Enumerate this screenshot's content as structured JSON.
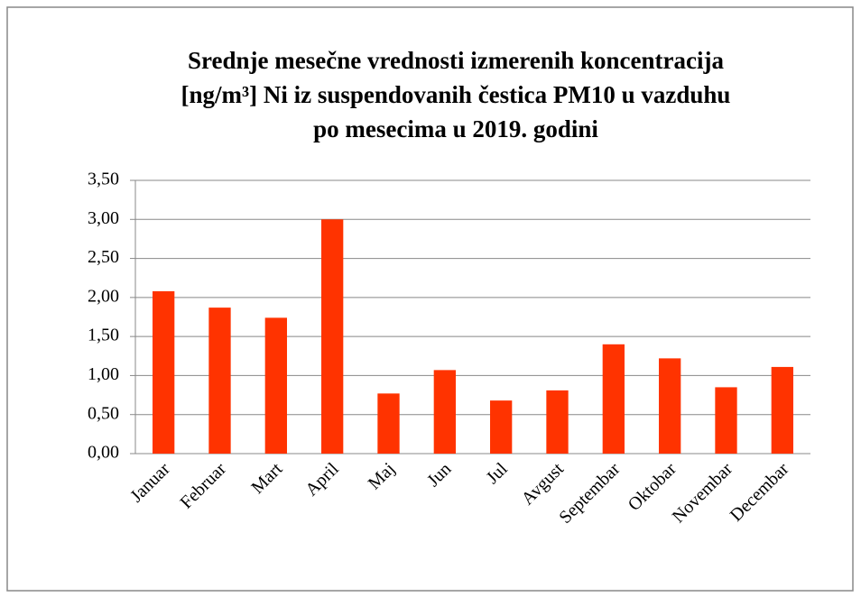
{
  "chart_data": {
    "type": "bar",
    "title": [
      "Srednje mesečne vrednosti izmerenih koncentracija",
      "[ng/m³] Ni iz suspendovanih čestica PM10 u vazduhu",
      "po mesecima u 2019. godini"
    ],
    "categories": [
      "Januar",
      "Februar",
      "Mart",
      "April",
      "Maj",
      "Jun",
      "Jul",
      "Avgust",
      "Septembar",
      "Oktobar",
      "Novembar",
      "Decembar"
    ],
    "values": [
      2.08,
      1.87,
      1.74,
      3.0,
      0.77,
      1.07,
      0.68,
      0.81,
      1.4,
      1.22,
      0.85,
      1.11
    ],
    "color": "#ff3300",
    "ylim": [
      0,
      3.5
    ],
    "yticks": [
      {
        "value": 0,
        "label": "0,00"
      },
      {
        "value": 0.5,
        "label": "0,50"
      },
      {
        "value": 1,
        "label": "1,00"
      },
      {
        "value": 1.5,
        "label": "1,50"
      },
      {
        "value": 2,
        "label": "2,00"
      },
      {
        "value": 2.5,
        "label": "2,50"
      },
      {
        "value": 3,
        "label": "3,00"
      },
      {
        "value": 3.5,
        "label": "3,50"
      }
    ],
    "grid": true
  }
}
